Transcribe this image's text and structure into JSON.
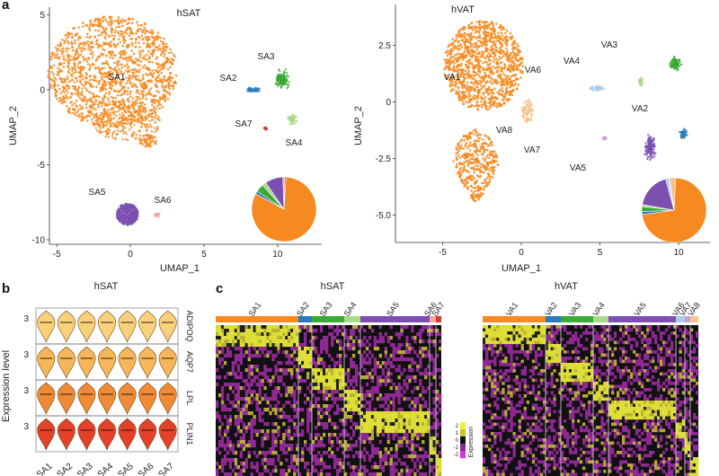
{
  "panels": {
    "a": "a",
    "b": "b",
    "c": "c"
  },
  "colors": {
    "sa1": "#f6891f",
    "sa2": "#2b7bba",
    "sa3": "#3aa935",
    "sa4": "#a8d98a",
    "sa5": "#7c4fb0",
    "sa6": "#f4a3a0",
    "sa7": "#d43b2c",
    "va6": "#a9cbe8",
    "va8": "#f5c28c"
  },
  "chart_data": [
    {
      "type": "scatter",
      "title": "hSAT",
      "xlabel": "UMAP_1",
      "ylabel": "UMAP_2",
      "xlim": [
        -5.5,
        13
      ],
      "ylim": [
        -10.3,
        5.5
      ],
      "xticks": [
        "-5",
        "0",
        "5",
        "10"
      ],
      "yticks": [
        "5",
        "0",
        "-5",
        "-10"
      ],
      "clusters": [
        {
          "label": "SA1",
          "center": [
            -1.2,
            0.6
          ],
          "color": "#f6891f"
        },
        {
          "label": "SA2",
          "center": [
            8.2,
            -0.1
          ],
          "color": "#2b7bba"
        },
        {
          "label": "SA3",
          "center": [
            10.2,
            0.7
          ],
          "color": "#3aa935"
        },
        {
          "label": "SA4",
          "center": [
            11.0,
            -2.1
          ],
          "color": "#a8d98a"
        },
        {
          "label": "SA5",
          "center": [
            -0.3,
            -8.2
          ],
          "color": "#7c4fb0"
        },
        {
          "label": "SA6",
          "center": [
            1.7,
            -8.3
          ],
          "color": "#f4a3a0"
        },
        {
          "label": "SA7",
          "center": [
            9.3,
            -2.7
          ],
          "color": "#d43b2c"
        }
      ]
    },
    {
      "type": "scatter",
      "title": "hVAT",
      "xlabel": "UMAP_1",
      "ylabel": "UMAP_2",
      "xlim": [
        -8,
        12
      ],
      "ylim": [
        -6.2,
        4.3
      ],
      "xticks": [
        "-5",
        "0",
        "5",
        "10"
      ],
      "yticks": [
        "2.5",
        "0",
        "-2.5",
        "-5.0"
      ],
      "clusters": [
        {
          "label": "VA1",
          "center": [
            -2.6,
            0.8
          ],
          "color": "#f6891f"
        },
        {
          "label": "VA2",
          "center": [
            10.2,
            -1.5
          ],
          "color": "#2b7bba"
        },
        {
          "label": "VA3",
          "center": [
            9.8,
            1.7
          ],
          "color": "#3aa935"
        },
        {
          "label": "VA4",
          "center": [
            7.6,
            0.9
          ],
          "color": "#a8d98a"
        },
        {
          "label": "VA5",
          "center": [
            8.8,
            -4.0
          ],
          "color": "#7c4fb0"
        },
        {
          "label": "VA6",
          "center": [
            4.8,
            0.6
          ],
          "color": "#a9cbe8"
        },
        {
          "label": "VA7",
          "center": [
            5.2,
            -1.6
          ],
          "color": "#c9a0d4"
        },
        {
          "label": "VA8",
          "center": [
            0.4,
            -0.4
          ],
          "color": "#f5c28c"
        }
      ]
    },
    {
      "type": "pie",
      "title": "",
      "values": [
        82,
        1.5,
        4,
        2,
        9,
        0.8,
        0.7
      ],
      "colors": [
        "#f6891f",
        "#2b7bba",
        "#3aa935",
        "#a8d98a",
        "#7c4fb0",
        "#f4a3a0",
        "#d43b2c"
      ]
    },
    {
      "type": "pie",
      "title": "",
      "values": [
        72,
        1.5,
        2.5,
        1,
        18,
        1.5,
        0.5,
        3
      ],
      "colors": [
        "#f6891f",
        "#2b7bba",
        "#3aa935",
        "#a8d98a",
        "#7c4fb0",
        "#a9cbe8",
        "#c9a0d4",
        "#f5c28c"
      ]
    },
    {
      "type": "violin",
      "title": "hSAT",
      "ylabel": "Expression level",
      "categories": [
        "SA1",
        "SA2",
        "SA3",
        "SA4",
        "SA5",
        "SA6",
        "SA7"
      ],
      "tick_label": "3",
      "genes": [
        {
          "name": "ADIPOQ",
          "color": "#fbd07a"
        },
        {
          "name": "AQP7",
          "color": "#f8b65a"
        },
        {
          "name": "LPL",
          "color": "#f18a35"
        },
        {
          "name": "PLIN1",
          "color": "#e5402a"
        }
      ]
    },
    {
      "type": "heatmap",
      "title": "hSAT",
      "clusters": [
        "SA1",
        "SA2",
        "SA3",
        "SA4",
        "SA5",
        "SA6",
        "SA7"
      ],
      "widths": [
        92,
        15,
        36,
        18,
        77,
        7,
        6
      ],
      "colors": [
        "#f6891f",
        "#2b7bba",
        "#3aa935",
        "#a8d98a",
        "#7c4fb0",
        "#f4a3a0",
        "#d43b2c"
      ]
    },
    {
      "type": "heatmap",
      "title": "hVAT",
      "clusters": [
        "VA1",
        "VA2",
        "VA3",
        "VA4",
        "VA5",
        "VA6",
        "VA7",
        "VA8"
      ],
      "widths": [
        70,
        17,
        36,
        17,
        75,
        10,
        6,
        9
      ],
      "colors": [
        "#f6891f",
        "#2b7bba",
        "#3aa935",
        "#a8d98a",
        "#7c4fb0",
        "#a9cbe8",
        "#c9a0d4",
        "#f5c28c"
      ]
    }
  ],
  "heat_legend": {
    "title": "Expression",
    "ticks": [
      "2",
      "1",
      "0",
      "-1",
      "-2"
    ]
  }
}
